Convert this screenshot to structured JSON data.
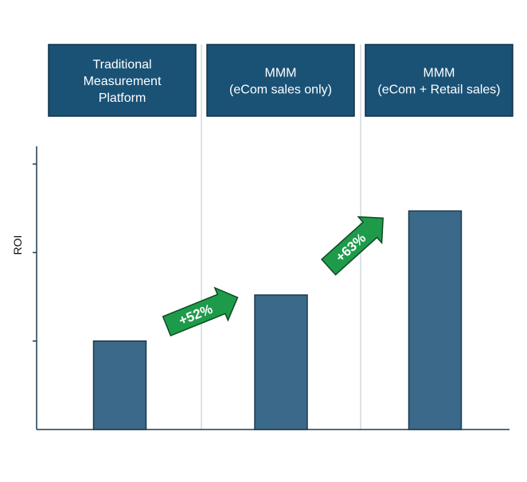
{
  "chart_data": {
    "type": "bar",
    "categories": [
      [
        "Traditional",
        "Measurement",
        "Platform"
      ],
      [
        "MMM",
        "(eCom sales only)"
      ],
      [
        "MMM",
        "(eCom + Retail sales)"
      ]
    ],
    "values": [
      1.0,
      1.52,
      2.47
    ],
    "ylabel": "ROI",
    "ylim": [
      0,
      3.2
    ],
    "y_ticks": [
      1,
      2,
      3
    ],
    "grid": false,
    "annotations": [
      "+52%",
      "+63%"
    ],
    "colors": {
      "bar": "#3a6989",
      "bar_edge": "#1d3a4f",
      "header": "#1a5276",
      "header_edge": "#0e2f45",
      "arrow": "#1e9b4a",
      "arrow_edge": "#0d4a22",
      "axis": "#1d3a4f",
      "divider": "#b8c6ce"
    }
  }
}
